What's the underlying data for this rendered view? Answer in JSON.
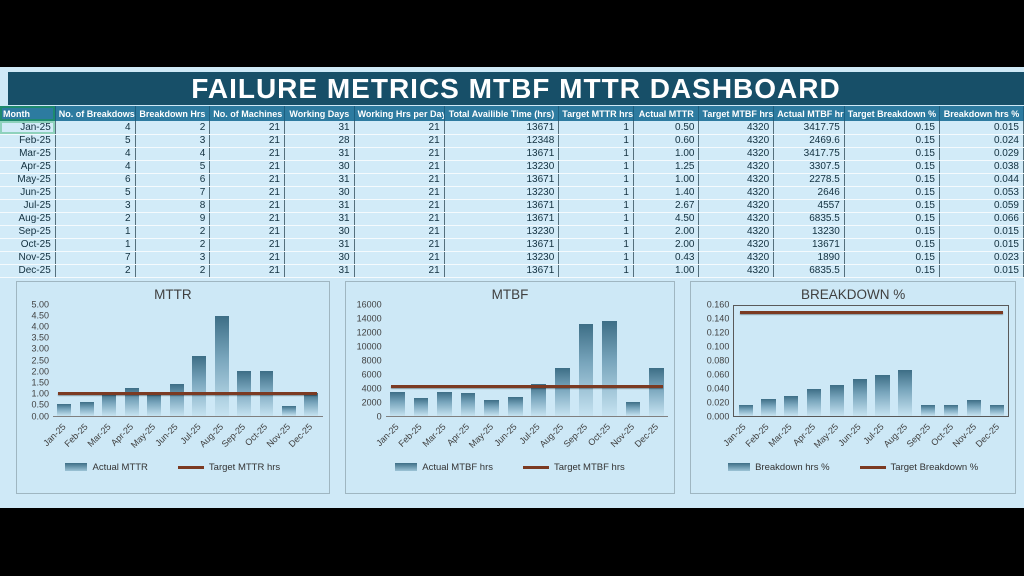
{
  "title": "FAILURE METRICS MTBF MTTR DASHBOARD",
  "table": {
    "columns": [
      "Month",
      "No. of Breakdows",
      "Breakdown Hrs",
      "No. of Machines",
      "Working Days",
      "Working Hrs per Day",
      "Total Availible Time (hrs)",
      "Target MTTR hrs",
      "Actual MTTR",
      "Target MTBF hrs",
      "Actual MTBF hrs",
      "Target Breakdown %",
      "Breakdown hrs %"
    ],
    "rows": [
      [
        "Jan-25",
        "4",
        "2",
        "21",
        "31",
        "21",
        "13671",
        "1",
        "0.50",
        "4320",
        "3417.75",
        "0.15",
        "0.015"
      ],
      [
        "Feb-25",
        "5",
        "3",
        "21",
        "28",
        "21",
        "12348",
        "1",
        "0.60",
        "4320",
        "2469.6",
        "0.15",
        "0.024"
      ],
      [
        "Mar-25",
        "4",
        "4",
        "21",
        "31",
        "21",
        "13671",
        "1",
        "1.00",
        "4320",
        "3417.75",
        "0.15",
        "0.029"
      ],
      [
        "Apr-25",
        "4",
        "5",
        "21",
        "30",
        "21",
        "13230",
        "1",
        "1.25",
        "4320",
        "3307.5",
        "0.15",
        "0.038"
      ],
      [
        "May-25",
        "6",
        "6",
        "21",
        "31",
        "21",
        "13671",
        "1",
        "1.00",
        "4320",
        "2278.5",
        "0.15",
        "0.044"
      ],
      [
        "Jun-25",
        "5",
        "7",
        "21",
        "30",
        "21",
        "13230",
        "1",
        "1.40",
        "4320",
        "2646",
        "0.15",
        "0.053"
      ],
      [
        "Jul-25",
        "3",
        "8",
        "21",
        "31",
        "21",
        "13671",
        "1",
        "2.67",
        "4320",
        "4557",
        "0.15",
        "0.059"
      ],
      [
        "Aug-25",
        "2",
        "9",
        "21",
        "31",
        "21",
        "13671",
        "1",
        "4.50",
        "4320",
        "6835.5",
        "0.15",
        "0.066"
      ],
      [
        "Sep-25",
        "1",
        "2",
        "21",
        "30",
        "21",
        "13230",
        "1",
        "2.00",
        "4320",
        "13230",
        "0.15",
        "0.015"
      ],
      [
        "Oct-25",
        "1",
        "2",
        "21",
        "31",
        "21",
        "13671",
        "1",
        "2.00",
        "4320",
        "13671",
        "0.15",
        "0.015"
      ],
      [
        "Nov-25",
        "7",
        "3",
        "21",
        "30",
        "21",
        "13230",
        "1",
        "0.43",
        "4320",
        "1890",
        "0.15",
        "0.023"
      ],
      [
        "Dec-25",
        "2",
        "2",
        "21",
        "31",
        "21",
        "13671",
        "1",
        "1.00",
        "4320",
        "6835.5",
        "0.15",
        "0.015"
      ]
    ]
  },
  "chart_data": [
    {
      "type": "bar",
      "title": "MTTR",
      "categories": [
        "Jan-25",
        "Feb-25",
        "Mar-25",
        "Apr-25",
        "May-25",
        "Jun-25",
        "Jul-25",
        "Aug-25",
        "Sep-25",
        "Oct-25",
        "Nov-25",
        "Dec-25"
      ],
      "series": [
        {
          "name": "Actual MTTR",
          "type": "bar",
          "values": [
            0.5,
            0.6,
            1.0,
            1.25,
            1.0,
            1.4,
            2.67,
            4.5,
            2.0,
            2.0,
            0.43,
            1.0
          ]
        },
        {
          "name": "Target MTTR hrs",
          "type": "line",
          "values": [
            1,
            1,
            1,
            1,
            1,
            1,
            1,
            1,
            1,
            1,
            1,
            1
          ]
        }
      ],
      "target": 1,
      "ylim": [
        0,
        5
      ],
      "ytick_step": 0.5,
      "ytick_decimals": 2,
      "legend_position": "bottom",
      "grid": false,
      "plot_border": false
    },
    {
      "type": "bar",
      "title": "MTBF",
      "categories": [
        "Jan-25",
        "Feb-25",
        "Mar-25",
        "Apr-25",
        "May-25",
        "Jun-25",
        "Jul-25",
        "Aug-25",
        "Sep-25",
        "Oct-25",
        "Nov-25",
        "Dec-25"
      ],
      "series": [
        {
          "name": "Actual MTBF hrs",
          "type": "bar",
          "values": [
            3417.75,
            2469.6,
            3417.75,
            3307.5,
            2278.5,
            2646,
            4557,
            6835.5,
            13230,
            13671,
            1890,
            6835.5
          ]
        },
        {
          "name": "Target MTBF hrs",
          "type": "line",
          "values": [
            4320,
            4320,
            4320,
            4320,
            4320,
            4320,
            4320,
            4320,
            4320,
            4320,
            4320,
            4320
          ]
        }
      ],
      "target": 4320,
      "ylim": [
        0,
        16000
      ],
      "ytick_step": 2000,
      "ytick_decimals": 0,
      "legend_position": "bottom",
      "grid": false,
      "plot_border": false
    },
    {
      "type": "bar",
      "title": "BREAKDOWN %",
      "categories": [
        "Jan-25",
        "Feb-25",
        "Mar-25",
        "Apr-25",
        "May-25",
        "Jun-25",
        "Jul-25",
        "Aug-25",
        "Sep-25",
        "Oct-25",
        "Nov-25",
        "Dec-25"
      ],
      "series": [
        {
          "name": "Breakdown hrs %",
          "type": "bar",
          "values": [
            0.015,
            0.024,
            0.029,
            0.038,
            0.044,
            0.053,
            0.059,
            0.066,
            0.015,
            0.015,
            0.023,
            0.015
          ]
        },
        {
          "name": "Target Breakdown %",
          "type": "line",
          "values": [
            0.15,
            0.15,
            0.15,
            0.15,
            0.15,
            0.15,
            0.15,
            0.15,
            0.15,
            0.15,
            0.15,
            0.15
          ]
        }
      ],
      "target": 0.15,
      "ylim": [
        0,
        0.16
      ],
      "ytick_step": 0.02,
      "ytick_decimals": 3,
      "legend_position": "bottom",
      "grid": false,
      "plot_border": true
    }
  ],
  "colors": {
    "letterbox": "#000000",
    "sheet_background": "#CFE9F7",
    "title_band": "#174F68",
    "table_header": "#2D7BA0",
    "table_row": "#D2EBF8",
    "bar_gradient_top": "#3D6E86",
    "bar_gradient_bottom": "#C6E3F1",
    "target_line": "#7B3A22",
    "chart_panel": "#CDE8F6",
    "selection_outline": "#1E8A6E"
  }
}
